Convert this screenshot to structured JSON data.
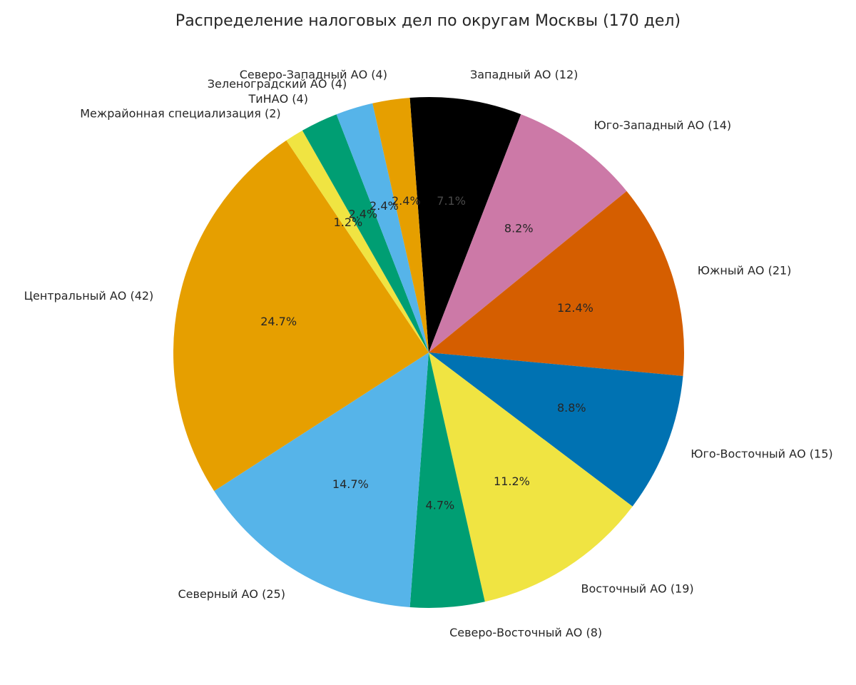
{
  "chart_data": {
    "type": "pie",
    "title": "Распределение налоговых дел по округам Москвы (170 дел)",
    "start_angle_deg": 94.24,
    "direction": "clockwise",
    "slices": [
      {
        "label": "Западный АО (12)",
        "value": 12,
        "pct": "7.1%",
        "color": "#000000"
      },
      {
        "label": "Юго-Западный АО (14)",
        "value": 14,
        "pct": "8.2%",
        "color": "#CC79A7"
      },
      {
        "label": "Южный АО (21)",
        "value": 21,
        "pct": "12.4%",
        "color": "#D55E00"
      },
      {
        "label": "Юго-Восточный АО (15)",
        "value": 15,
        "pct": "8.8%",
        "color": "#0072B2"
      },
      {
        "label": "Восточный АО (19)",
        "value": 19,
        "pct": "11.2%",
        "color": "#F0E442"
      },
      {
        "label": "Северо-Восточный АО (8)",
        "value": 8,
        "pct": "4.7%",
        "color": "#009E73"
      },
      {
        "label": "Северный АО (25)",
        "value": 25,
        "pct": "14.7%",
        "color": "#56B4E9"
      },
      {
        "label": "Центральный АО (42)",
        "value": 42,
        "pct": "24.7%",
        "color": "#E69F00"
      },
      {
        "label": "Межрайонная специализация (2)",
        "value": 2,
        "pct": "1.2%",
        "color": "#F0E442"
      },
      {
        "label": "ТиНАО (4)",
        "value": 4,
        "pct": "2.4%",
        "color": "#009E73"
      },
      {
        "label": "Зеленоградский АО (4)",
        "value": 4,
        "pct": "2.4%",
        "color": "#56B4E9"
      },
      {
        "label": "Северо-Западный АО (4)",
        "value": 4,
        "pct": "2.4%",
        "color": "#E69F00"
      }
    ]
  }
}
